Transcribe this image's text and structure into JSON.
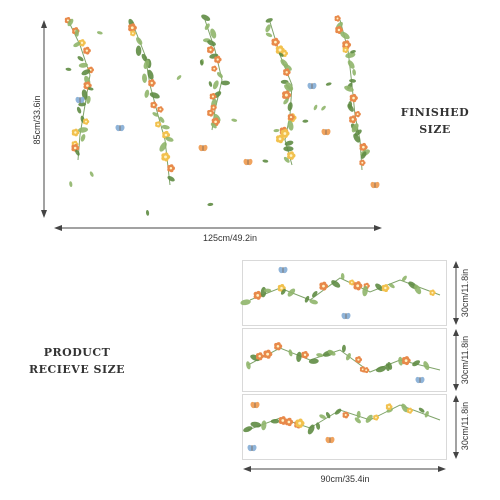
{
  "finished": {
    "title_line1": "FINISHED",
    "title_line2": "SIZE",
    "height_label": "85cm/33.6in",
    "width_label": "125cm/49.2in"
  },
  "product": {
    "title_line1": "PRODUCT",
    "title_line2": "RECIEVE SIZE",
    "sheet_height_labels": [
      "30cm/11.8in",
      "30cm/11.8in",
      "30cm/11.8in"
    ],
    "width_label": "90cm/35.4in"
  },
  "colors": {
    "leaf": "#8fb56a",
    "leaf_dark": "#5f8c44",
    "flower_orange": "#e8894a",
    "flower_yellow": "#f2c14e",
    "butterfly_blue": "#8fb4d9",
    "butterfly_orange": "#f0a35e"
  }
}
